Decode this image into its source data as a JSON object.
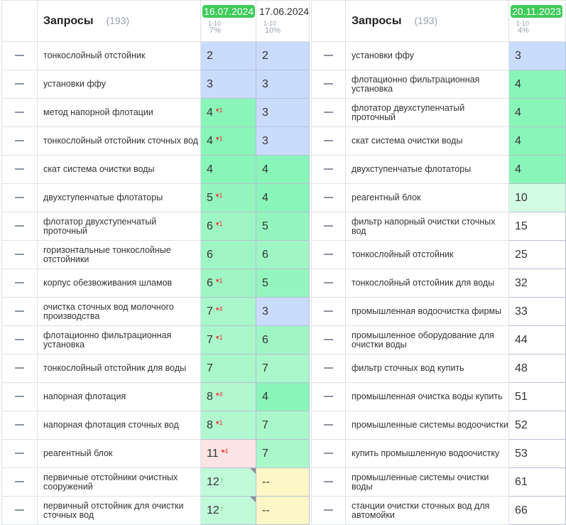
{
  "left": {
    "title": "Запросы",
    "count": "(193)",
    "dates": [
      {
        "date": "16.07.2024",
        "range": "1-10",
        "pct": "7%",
        "active": true
      },
      {
        "date": "17.06.2024",
        "range": "1-10",
        "pct": "10%",
        "active": false
      }
    ],
    "rows": [
      {
        "q": "тонкослойный отстойник",
        "c": [
          {
            "v": "2",
            "bg": "#cadcfc"
          },
          {
            "v": "2",
            "bg": "#cadcfc"
          }
        ]
      },
      {
        "q": "установки ффу",
        "c": [
          {
            "v": "3",
            "bg": "#cadcfc"
          },
          {
            "v": "3",
            "bg": "#cadcfc"
          }
        ]
      },
      {
        "q": "метод напорной флотации",
        "c": [
          {
            "v": "4",
            "d": "1",
            "bg": "#8af5b8"
          },
          {
            "v": "3",
            "bg": "#cadcfc"
          }
        ]
      },
      {
        "q": "тонкослойный отстойник сточных вод",
        "c": [
          {
            "v": "4",
            "d": "1",
            "bg": "#8af5b8"
          },
          {
            "v": "3",
            "bg": "#cadcfc"
          }
        ]
      },
      {
        "q": "скат система очистки воды",
        "c": [
          {
            "v": "4",
            "bg": "#8af5b8"
          },
          {
            "v": "4",
            "bg": "#8af5b8"
          }
        ]
      },
      {
        "q": "двухступенчатые флотаторы",
        "c": [
          {
            "v": "5",
            "d": "1",
            "bg": "#95f5be"
          },
          {
            "v": "4",
            "bg": "#8af5b8"
          }
        ]
      },
      {
        "q": "флотатор двухступенчатый проточный",
        "c": [
          {
            "v": "6",
            "d": "1",
            "bg": "#9ff6c4"
          },
          {
            "v": "5",
            "bg": "#95f5be"
          }
        ]
      },
      {
        "q": "горизонтальные тонкослойные отстойники",
        "c": [
          {
            "v": "6",
            "bg": "#9ff6c4"
          },
          {
            "v": "6",
            "bg": "#9ff6c4"
          }
        ]
      },
      {
        "q": "корпус обезвоживания шламов",
        "c": [
          {
            "v": "6",
            "d": "1",
            "bg": "#9ff6c4"
          },
          {
            "v": "5",
            "bg": "#95f5be"
          }
        ]
      },
      {
        "q": "очистка сточных вод молочного производства",
        "c": [
          {
            "v": "7",
            "d": "4",
            "bg": "#a9f7cb"
          },
          {
            "v": "3",
            "bg": "#cadcfc"
          }
        ]
      },
      {
        "q": "флотационно фильтрационная установка",
        "c": [
          {
            "v": "7",
            "d": "1",
            "bg": "#a9f7cb"
          },
          {
            "v": "6",
            "bg": "#9ff6c4"
          }
        ]
      },
      {
        "q": "тонкослойный отстойник для воды",
        "c": [
          {
            "v": "7",
            "bg": "#a9f7cb"
          },
          {
            "v": "7",
            "bg": "#a9f7cb"
          }
        ]
      },
      {
        "q": "напорная флотация",
        "c": [
          {
            "v": "8",
            "d": "4",
            "bg": "#b1f8d0"
          },
          {
            "v": "4",
            "bg": "#8af5b8"
          }
        ]
      },
      {
        "q": "напорная флотация сточных вод",
        "c": [
          {
            "v": "8",
            "d": "1",
            "bg": "#b1f8d0"
          },
          {
            "v": "7",
            "bg": "#a9f7cb"
          }
        ]
      },
      {
        "q": "реагентный блок",
        "c": [
          {
            "v": "11",
            "d": "4",
            "bg": "#fde4e4"
          },
          {
            "v": "7",
            "bg": "#a9f7cb"
          }
        ]
      },
      {
        "q": "первичные отстойники очистных сооружений",
        "c": [
          {
            "v": "12",
            "up": "↑",
            "bg": "#c1fad9",
            "corner": true
          },
          {
            "v": "--",
            "bg": "#fdf6c6"
          }
        ]
      },
      {
        "q": "первичный отстойник для очистки сточных вод",
        "c": [
          {
            "v": "12",
            "up": "↑",
            "bg": "#c1fad9",
            "corner": true
          },
          {
            "v": "--",
            "bg": "#fdf6c6"
          }
        ]
      }
    ]
  },
  "right": {
    "title": "Запросы",
    "count": "(193)",
    "dates": [
      {
        "date": "20.11.2023",
        "range": "1-10",
        "pct": "4%",
        "active": true
      }
    ],
    "rows": [
      {
        "q": "установки ффу",
        "c": [
          {
            "v": "3",
            "bg": "#cadcfc"
          }
        ]
      },
      {
        "q": "флотационно фильтрационная установка",
        "c": [
          {
            "v": "4",
            "bg": "#8af5b8"
          }
        ]
      },
      {
        "q": "флотатор двухступенчатый проточный",
        "c": [
          {
            "v": "4",
            "bg": "#8af5b8"
          }
        ]
      },
      {
        "q": "скат система очистки воды",
        "c": [
          {
            "v": "4",
            "bg": "#8af5b8"
          }
        ]
      },
      {
        "q": "двухступенчатые флотаторы",
        "c": [
          {
            "v": "4",
            "bg": "#8af5b8"
          }
        ]
      },
      {
        "q": "реагентный блок",
        "c": [
          {
            "v": "10",
            "bg": "#d3fce4"
          }
        ]
      },
      {
        "q": "фильтр напорный очистки сточных вод",
        "c": [
          {
            "v": "15",
            "bg": "#ffffff"
          }
        ]
      },
      {
        "q": "тонкослойный отстойник",
        "c": [
          {
            "v": "25",
            "bg": "#ffffff"
          }
        ]
      },
      {
        "q": "тонкослойный отстойник для воды",
        "c": [
          {
            "v": "32",
            "bg": "#ffffff"
          }
        ]
      },
      {
        "q": "промышленная водоочистка фирмы",
        "c": [
          {
            "v": "33",
            "bg": "#ffffff"
          }
        ]
      },
      {
        "q": "промышленное оборудование для очистки воды",
        "c": [
          {
            "v": "44",
            "bg": "#ffffff"
          }
        ]
      },
      {
        "q": "фильтр сточных вод купить",
        "c": [
          {
            "v": "48",
            "bg": "#ffffff"
          }
        ]
      },
      {
        "q": "промышленная очистка воды купить",
        "c": [
          {
            "v": "51",
            "bg": "#ffffff"
          }
        ]
      },
      {
        "q": "промышленные системы водоочистки",
        "c": [
          {
            "v": "52",
            "bg": "#ffffff"
          }
        ]
      },
      {
        "q": "купить промышленную водоочистку",
        "c": [
          {
            "v": "53",
            "bg": "#ffffff"
          }
        ]
      },
      {
        "q": "промышленные системы очистки воды",
        "c": [
          {
            "v": "61",
            "bg": "#ffffff"
          }
        ]
      },
      {
        "q": "станции очистки сточных вод для автомойки",
        "c": [
          {
            "v": "66",
            "bg": "#ffffff"
          }
        ]
      }
    ]
  }
}
